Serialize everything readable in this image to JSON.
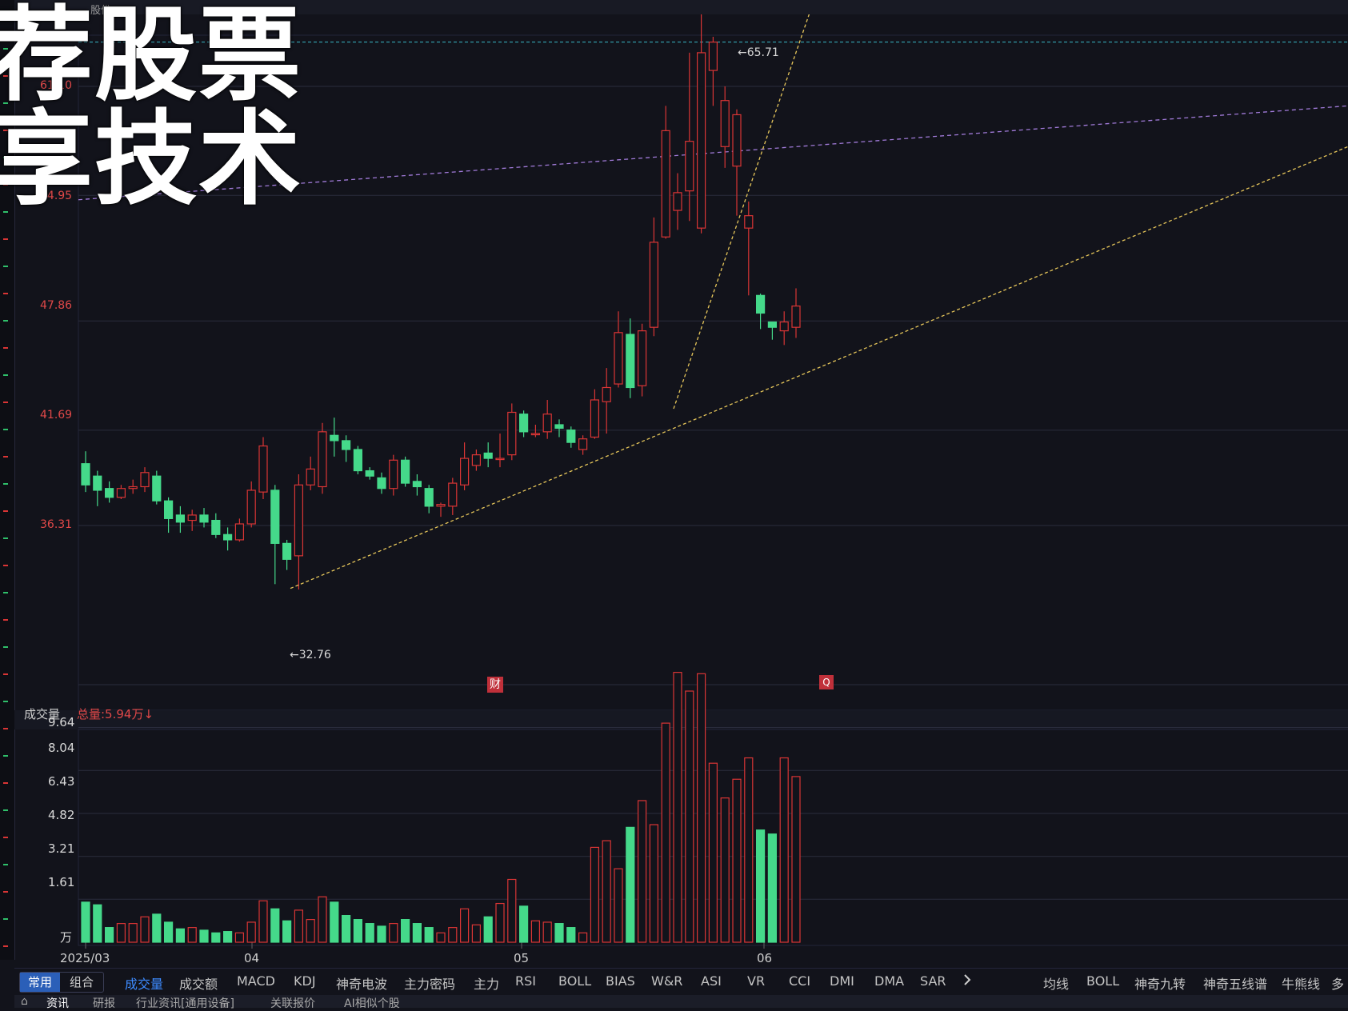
{
  "header": {
    "stock_name": "股份"
  },
  "overlay": {
    "line1": "荐股票",
    "line2": "享技术"
  },
  "price_axis": [
    {
      "label": "61.10",
      "value": 61.1
    },
    {
      "label": "54.95",
      "value": 54.95
    },
    {
      "label": "47.86",
      "value": 47.86
    },
    {
      "label": "41.69",
      "value": 41.69
    },
    {
      "label": "36.31",
      "value": 36.31
    }
  ],
  "annotations": {
    "high": "←65.71",
    "low": "←32.76"
  },
  "badges": {
    "fin": "财",
    "q": "Q"
  },
  "volume": {
    "title": "成交量",
    "total": "总量:5.94万↓",
    "unit": "万",
    "axis": [
      "9.64",
      "8.04",
      "6.43",
      "4.82",
      "3.21",
      "1.61"
    ]
  },
  "x_axis": [
    "2025/03",
    "04",
    "05",
    "06"
  ],
  "tabs": {
    "segment": [
      "常用",
      "组合"
    ],
    "indicators": [
      "成交量",
      "成交额",
      "MACD",
      "KDJ",
      "神奇电波",
      "主力密码",
      "主力",
      "RSI",
      "BOLL",
      "BIAS",
      "W&R",
      "ASI",
      "VR",
      "CCI",
      "DMI",
      "DMA",
      "SAR"
    ],
    "more_icon": "chevron-right-icon",
    "right": [
      "均线",
      "BOLL",
      "神奇九转",
      "神奇五线谱",
      "牛熊线",
      "多"
    ]
  },
  "bottom_tabs": [
    "资讯",
    "研报",
    "行业资讯[通用设备]",
    "关联报价",
    "AI相似个股"
  ],
  "colors": {
    "up": "#d93535",
    "down": "#45d98a",
    "background": "#12131b"
  },
  "chart_data": {
    "type": "candlestick",
    "y_unit": "price",
    "price_range": [
      31.5,
      67
    ],
    "volume_range": [
      0,
      10.2
    ],
    "candles": [
      [
        39.8,
        38.6,
        40.5,
        38.2,
        1.5
      ],
      [
        39.1,
        38.3,
        39.4,
        37.4,
        1.4
      ],
      [
        38.4,
        37.9,
        38.8,
        37.6,
        0.55
      ],
      [
        37.9,
        38.4,
        38.6,
        37.8,
        0.7
      ],
      [
        38.4,
        38.5,
        38.9,
        38.1,
        0.7
      ],
      [
        38.5,
        39.3,
        39.6,
        38.2,
        0.95
      ],
      [
        39.1,
        37.7,
        39.4,
        37.5,
        1.05
      ],
      [
        37.7,
        36.7,
        37.9,
        35.9,
        0.75
      ],
      [
        36.9,
        36.5,
        37.4,
        35.9,
        0.5
      ],
      [
        36.6,
        36.9,
        37.2,
        36.0,
        0.55
      ],
      [
        36.9,
        36.5,
        37.3,
        36.2,
        0.45
      ],
      [
        36.6,
        35.8,
        37.0,
        35.6,
        0.35
      ],
      [
        35.8,
        35.5,
        36.2,
        34.9,
        0.4
      ],
      [
        35.5,
        36.4,
        36.7,
        35.4,
        0.35
      ],
      [
        36.4,
        38.3,
        38.8,
        36.2,
        0.75
      ],
      [
        38.2,
        40.8,
        41.3,
        37.8,
        1.55
      ],
      [
        38.3,
        35.3,
        38.6,
        33.0,
        1.25
      ],
      [
        35.3,
        34.4,
        35.5,
        33.8,
        0.8
      ],
      [
        34.6,
        38.6,
        39.2,
        32.7,
        1.2
      ],
      [
        38.6,
        39.5,
        40.2,
        38.3,
        0.85
      ],
      [
        38.5,
        41.6,
        42.1,
        38.1,
        1.7
      ],
      [
        41.4,
        41.1,
        42.4,
        40.2,
        1.5
      ],
      [
        41.1,
        40.6,
        41.4,
        39.9,
        1.0
      ],
      [
        40.6,
        39.4,
        40.8,
        39.2,
        0.85
      ],
      [
        39.4,
        39.1,
        39.6,
        38.9,
        0.7
      ],
      [
        39.0,
        38.4,
        39.3,
        38.1,
        0.6
      ],
      [
        38.4,
        40.0,
        40.3,
        38.0,
        0.7
      ],
      [
        40.0,
        38.7,
        40.2,
        38.5,
        0.85
      ],
      [
        38.8,
        38.5,
        39.2,
        38.0,
        0.7
      ],
      [
        38.4,
        37.4,
        38.6,
        37.0,
        0.55
      ],
      [
        37.4,
        37.5,
        37.6,
        36.8,
        0.35
      ],
      [
        37.4,
        38.7,
        39.0,
        36.9,
        0.55
      ],
      [
        38.6,
        40.1,
        41.0,
        38.3,
        1.25
      ],
      [
        39.7,
        40.3,
        40.6,
        39.4,
        0.65
      ],
      [
        40.4,
        40.1,
        41.0,
        39.6,
        0.95
      ],
      [
        40.1,
        40.1,
        41.5,
        39.6,
        1.45
      ],
      [
        40.3,
        42.7,
        43.2,
        40.0,
        2.35
      ],
      [
        42.6,
        41.6,
        42.8,
        41.3,
        1.35
      ],
      [
        41.5,
        41.5,
        42.0,
        41.3,
        0.8
      ],
      [
        41.6,
        42.6,
        43.4,
        41.2,
        0.75
      ],
      [
        42.0,
        41.8,
        42.3,
        41.3,
        0.7
      ],
      [
        41.7,
        41.0,
        41.9,
        40.7,
        0.55
      ],
      [
        40.6,
        41.2,
        41.4,
        40.3,
        0.35
      ],
      [
        41.3,
        43.4,
        44.0,
        41.2,
        3.55
      ],
      [
        43.3,
        44.1,
        45.2,
        41.5,
        3.8
      ],
      [
        44.3,
        47.2,
        48.4,
        44.1,
        2.75
      ],
      [
        47.1,
        44.1,
        48.0,
        43.5,
        4.3
      ],
      [
        44.2,
        47.3,
        47.7,
        43.6,
        5.3
      ],
      [
        47.5,
        52.3,
        53.7,
        47.0,
        4.4
      ],
      [
        52.6,
        58.6,
        60.0,
        52.5,
        8.2
      ],
      [
        54.1,
        55.1,
        56.2,
        53.0,
        10.1
      ],
      [
        55.2,
        58.0,
        63.0,
        53.5,
        9.4
      ],
      [
        53.1,
        63.0,
        65.7,
        52.8,
        10.05
      ],
      [
        62.0,
        63.6,
        63.9,
        60.0,
        6.7
      ],
      [
        57.7,
        60.3,
        61.1,
        56.5,
        5.4
      ],
      [
        56.6,
        59.5,
        59.8,
        53.8,
        6.1
      ],
      [
        53.1,
        53.8,
        54.6,
        49.3,
        6.9
      ],
      [
        49.3,
        48.3,
        49.4,
        47.4,
        4.2
      ],
      [
        47.8,
        47.5,
        47.8,
        46.8,
        4.05
      ],
      [
        47.3,
        47.8,
        48.4,
        46.5,
        6.9
      ],
      [
        47.5,
        48.7,
        49.7,
        46.9,
        6.2
      ]
    ],
    "trend_lines": [
      {
        "from": [
          "2025-04-08",
          32.76
        ],
        "to": [
          "2025-06-30",
          61.5
        ]
      },
      {
        "from": [
          "2025-05-20",
          43.4
        ],
        "to": [
          "2025-06-04",
          66.3
        ]
      }
    ],
    "reference_level": 63.6
  }
}
